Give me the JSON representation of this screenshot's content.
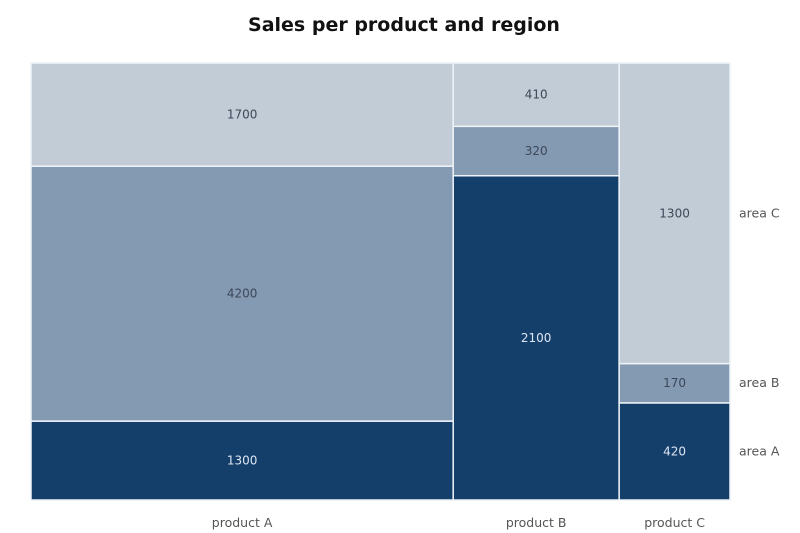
{
  "chart_data": {
    "type": "mosaic",
    "title": "Sales per product and region",
    "categories": [
      "product A",
      "product B",
      "product C"
    ],
    "series": [
      {
        "name": "area A",
        "values": [
          1300,
          2100,
          420
        ],
        "color": "#153f6b"
      },
      {
        "name": "area B",
        "values": [
          4200,
          320,
          170
        ],
        "color": "#8499b2"
      },
      {
        "name": "area C",
        "values": [
          1700,
          410,
          1300
        ],
        "color": "#c2ccd7"
      }
    ],
    "legend": "right",
    "grid": false
  }
}
